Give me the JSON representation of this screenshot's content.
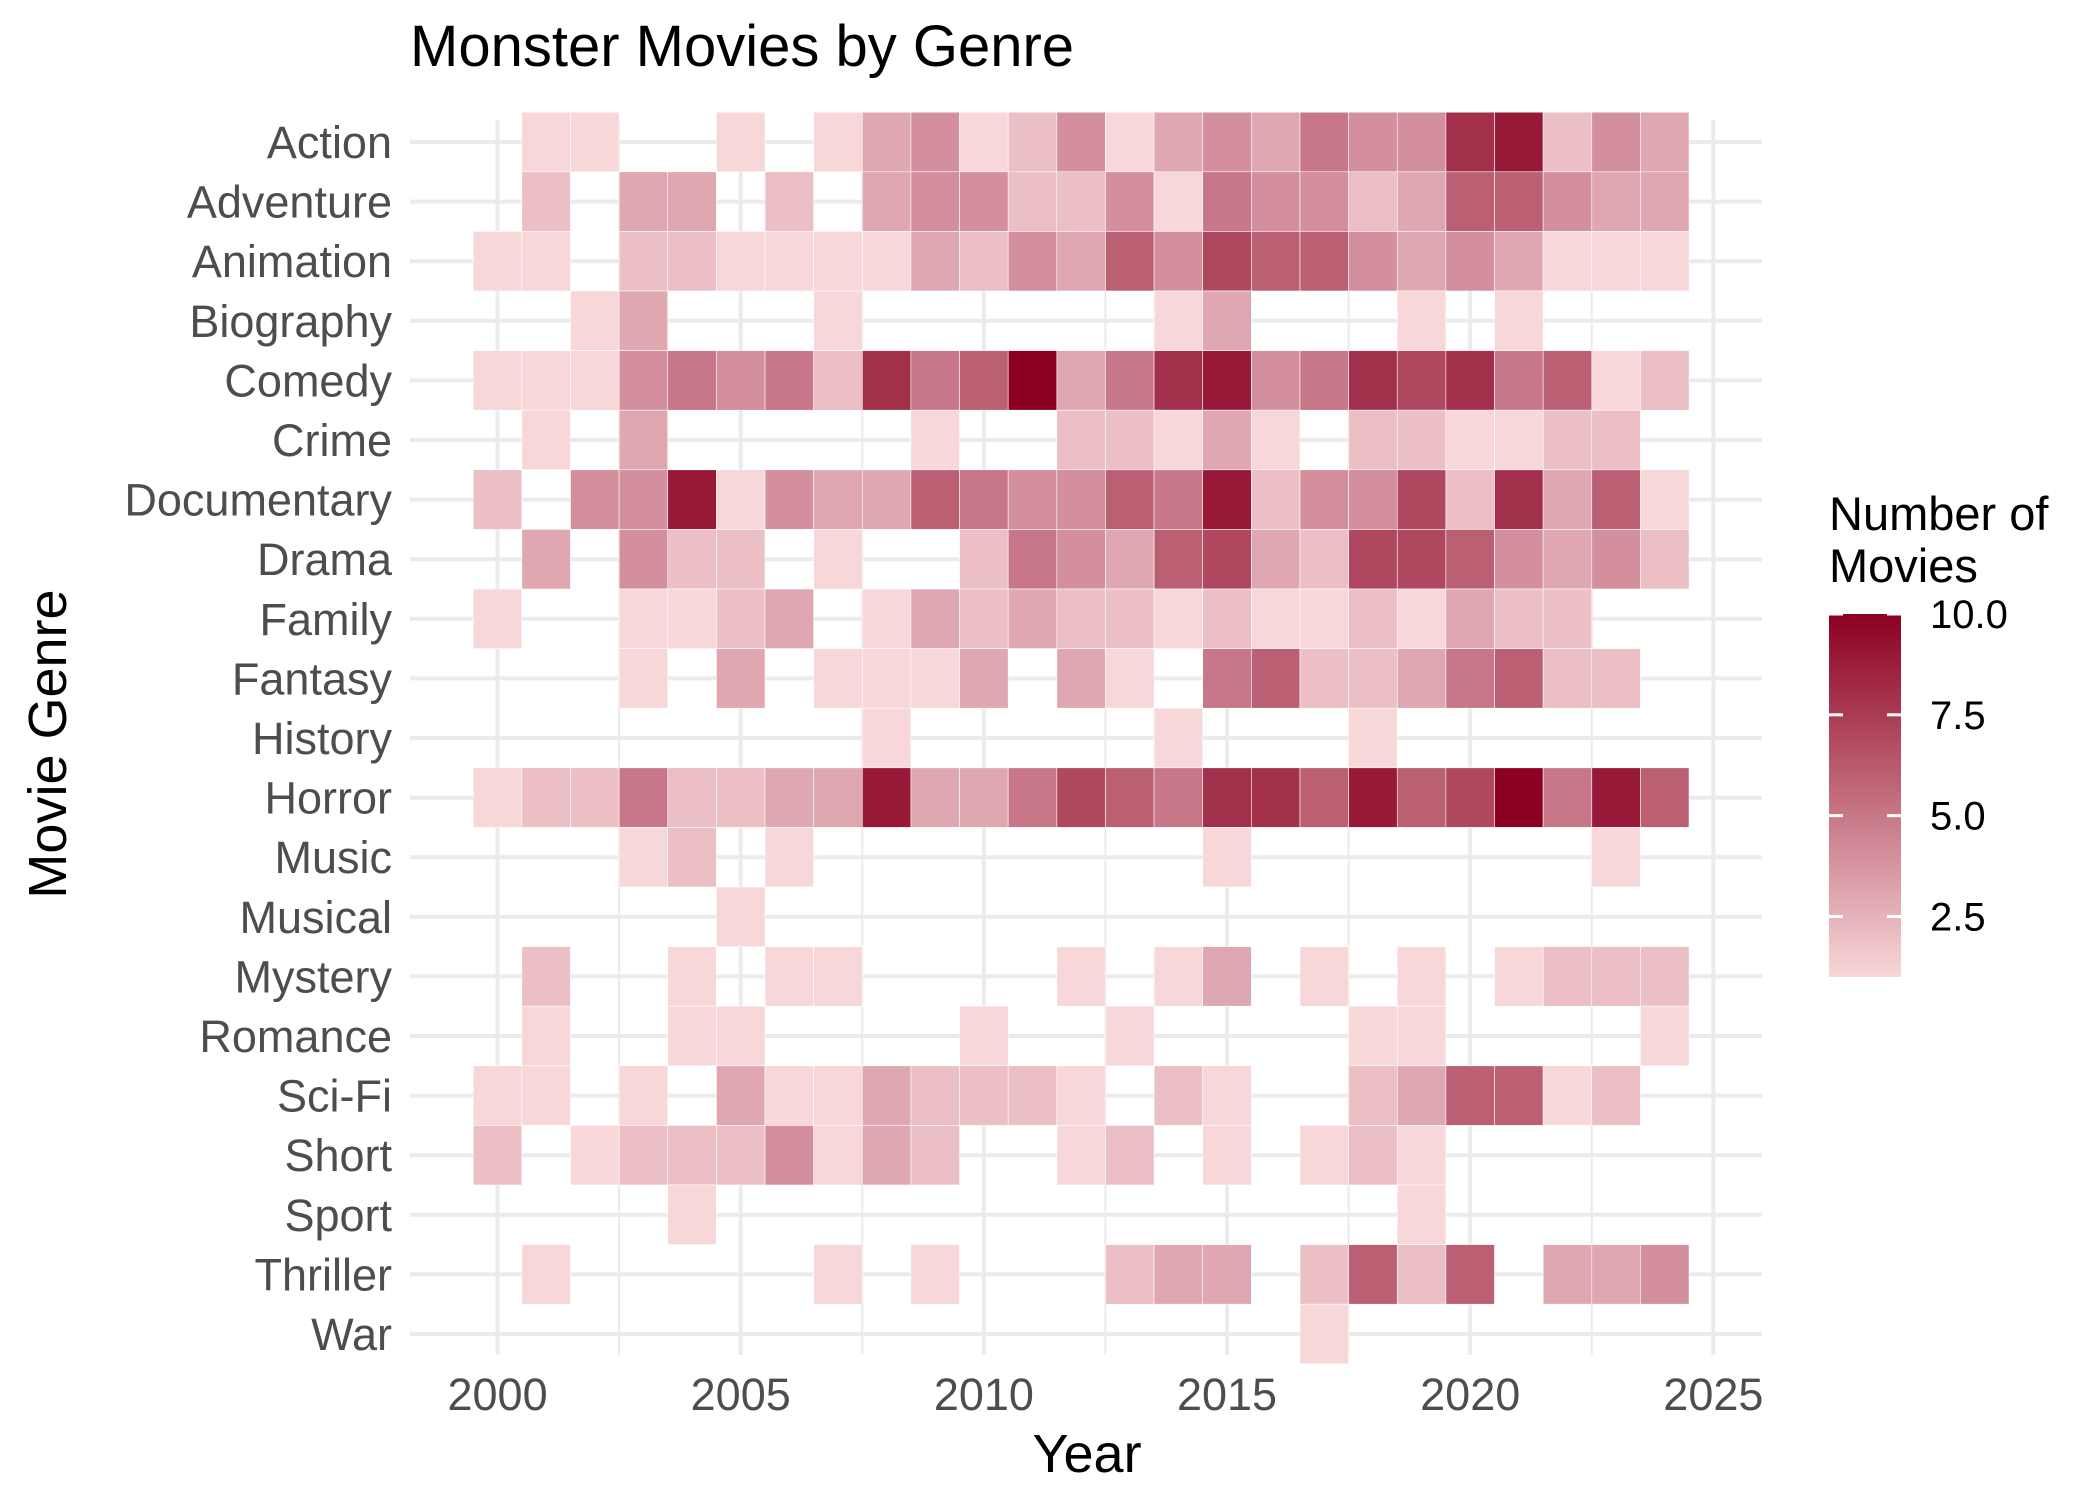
{
  "chart_data": {
    "type": "heatmap",
    "title": "Monster Movies by Genre",
    "xlabel": "Year",
    "ylabel": "Movie Genre",
    "x_ticks": [
      2000,
      2005,
      2010,
      2015,
      2020,
      2025
    ],
    "xlim": [
      1998.2,
      2026
    ],
    "years": [
      2000,
      2001,
      2002,
      2003,
      2004,
      2005,
      2006,
      2007,
      2008,
      2009,
      2010,
      2011,
      2012,
      2013,
      2014,
      2015,
      2016,
      2017,
      2018,
      2019,
      2020,
      2021,
      2022,
      2023,
      2024
    ],
    "genres": [
      "Action",
      "Adventure",
      "Animation",
      "Biography",
      "Comedy",
      "Crime",
      "Documentary",
      "Drama",
      "Family",
      "Fantasy",
      "History",
      "Horror",
      "Music",
      "Musical",
      "Mystery",
      "Romance",
      "Sci-Fi",
      "Short",
      "Sport",
      "Thriller",
      "War"
    ],
    "values": [
      [
        null,
        1,
        1,
        null,
        null,
        1,
        null,
        1,
        3,
        4,
        1,
        2,
        4,
        1,
        3,
        4,
        3,
        5,
        4,
        4,
        8,
        9,
        2,
        4,
        3
      ],
      [
        null,
        2,
        null,
        3,
        3,
        null,
        2,
        null,
        3,
        4,
        4,
        2,
        2,
        4,
        1,
        5,
        4,
        4,
        2,
        3,
        6,
        6,
        4,
        3,
        3
      ],
      [
        1,
        1,
        null,
        2,
        2,
        1,
        1,
        1,
        1,
        3,
        2,
        4,
        3,
        6,
        4,
        7,
        6,
        6,
        4,
        3,
        4,
        3,
        1,
        1,
        1
      ],
      [
        null,
        null,
        1,
        3,
        null,
        null,
        null,
        1,
        null,
        null,
        null,
        null,
        null,
        null,
        1,
        3,
        null,
        null,
        null,
        1,
        null,
        1,
        null,
        null,
        null
      ],
      [
        1,
        1,
        1,
        4,
        5,
        4,
        5,
        2,
        8,
        5,
        6,
        10,
        3,
        5,
        8,
        9,
        4,
        5,
        8,
        7,
        8,
        5,
        6,
        1,
        2
      ],
      [
        null,
        1,
        null,
        3,
        null,
        null,
        null,
        null,
        null,
        1,
        null,
        null,
        2,
        2,
        1,
        3,
        1,
        null,
        2,
        2,
        1,
        1,
        2,
        2,
        null
      ],
      [
        2,
        null,
        4,
        4,
        9,
        1,
        4,
        3,
        3,
        6,
        5,
        4,
        4,
        6,
        5,
        9,
        2,
        4,
        4,
        7,
        2,
        8,
        3,
        6,
        1
      ],
      [
        null,
        3,
        null,
        4,
        2,
        2,
        null,
        1,
        null,
        null,
        2,
        5,
        4,
        3,
        6,
        7,
        3,
        2,
        7,
        7,
        6,
        4,
        3,
        4,
        2
      ],
      [
        1,
        null,
        null,
        1,
        1,
        2,
        3,
        null,
        1,
        3,
        2,
        3,
        2,
        2,
        1,
        2,
        1,
        1,
        2,
        1,
        3,
        2,
        2,
        null,
        null
      ],
      [
        null,
        null,
        null,
        1,
        null,
        3,
        null,
        1,
        1,
        1,
        3,
        null,
        3,
        1,
        null,
        5,
        6,
        2,
        2,
        3,
        5,
        6,
        2,
        2,
        null
      ],
      [
        null,
        null,
        null,
        null,
        null,
        null,
        null,
        null,
        1,
        null,
        null,
        null,
        null,
        null,
        1,
        null,
        null,
        null,
        1,
        null,
        null,
        null,
        null,
        null,
        null
      ],
      [
        1,
        2,
        2,
        5,
        2,
        2,
        3,
        3,
        9,
        3,
        3,
        5,
        7,
        6,
        5,
        8,
        8,
        6,
        9,
        6,
        7,
        10,
        5,
        9,
        6
      ],
      [
        null,
        null,
        null,
        1,
        2,
        null,
        1,
        null,
        null,
        null,
        null,
        null,
        null,
        null,
        null,
        1,
        null,
        null,
        null,
        null,
        null,
        null,
        null,
        1,
        null
      ],
      [
        null,
        null,
        null,
        null,
        null,
        1,
        null,
        null,
        null,
        null,
        null,
        null,
        null,
        null,
        null,
        null,
        null,
        null,
        null,
        null,
        null,
        null,
        null,
        null,
        null
      ],
      [
        null,
        2,
        null,
        null,
        1,
        null,
        1,
        1,
        null,
        null,
        null,
        null,
        1,
        null,
        1,
        3,
        null,
        1,
        null,
        1,
        null,
        1,
        2,
        2,
        2
      ],
      [
        null,
        1,
        null,
        null,
        1,
        1,
        null,
        null,
        null,
        null,
        1,
        null,
        null,
        1,
        null,
        null,
        null,
        null,
        1,
        1,
        null,
        null,
        null,
        null,
        1
      ],
      [
        1,
        1,
        null,
        1,
        null,
        3,
        1,
        1,
        3,
        2,
        2,
        2,
        1,
        null,
        2,
        1,
        null,
        null,
        2,
        3,
        6,
        6,
        1,
        2,
        null
      ],
      [
        2,
        null,
        1,
        2,
        2,
        2,
        4,
        1,
        3,
        2,
        null,
        null,
        1,
        2,
        null,
        1,
        null,
        1,
        2,
        1,
        null,
        null,
        null,
        null,
        null
      ],
      [
        null,
        null,
        null,
        null,
        1,
        null,
        null,
        null,
        null,
        null,
        null,
        null,
        null,
        null,
        null,
        null,
        null,
        null,
        null,
        1,
        null,
        null,
        null,
        null,
        null
      ],
      [
        null,
        1,
        null,
        null,
        null,
        null,
        null,
        1,
        null,
        1,
        null,
        null,
        null,
        2,
        3,
        3,
        null,
        2,
        6,
        2,
        6,
        null,
        3,
        3,
        4
      ],
      [
        null,
        null,
        null,
        null,
        null,
        null,
        null,
        null,
        null,
        null,
        null,
        null,
        null,
        null,
        null,
        null,
        null,
        1,
        null,
        null,
        null,
        null,
        null,
        null,
        null
      ]
    ],
    "legend": {
      "title_lines": [
        "Number of",
        "Movies"
      ],
      "ticks": [
        "10.0",
        "7.5",
        "5.0",
        "2.5"
      ],
      "tick_values": [
        10,
        7.5,
        5,
        2.5
      ],
      "range": [
        1,
        10
      ],
      "color_low": "#f7d7d7",
      "color_high": "#8b0023",
      "placement": "right"
    },
    "grid": true
  }
}
